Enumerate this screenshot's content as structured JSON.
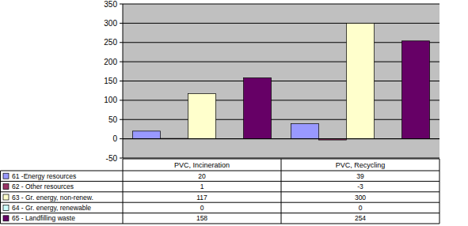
{
  "chart_data": {
    "type": "bar",
    "categories": [
      "PVC, Incineration",
      "PVC, Recycling"
    ],
    "series": [
      {
        "name": "61 -Energy resources",
        "color": "#9999ff",
        "values": [
          20,
          39
        ]
      },
      {
        "name": "62 - Other resources",
        "color": "#993366",
        "values": [
          1,
          -3
        ]
      },
      {
        "name": "63 - Gr. energy, non-renew.",
        "color": "#ffffcc",
        "values": [
          117,
          300
        ]
      },
      {
        "name": "64 - Gr. energy, renewable",
        "color": "#ccffff",
        "values": [
          0,
          0
        ]
      },
      {
        "name": "65 - Landfilling waste",
        "color": "#660066",
        "values": [
          158,
          254
        ]
      }
    ],
    "ylim": [
      -50,
      350
    ],
    "yticks": [
      -50,
      0,
      50,
      100,
      150,
      200,
      250,
      300,
      350
    ],
    "grid": true,
    "legend": "bottom"
  }
}
